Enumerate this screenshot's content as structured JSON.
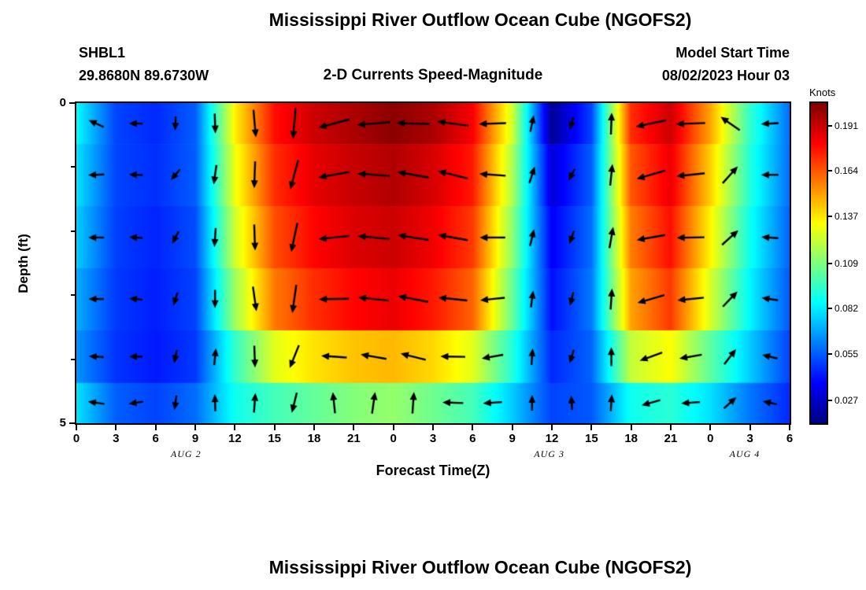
{
  "figure": {
    "title": "Mississippi River Outflow Ocean Cube (NGOFS2)",
    "station_id": "SHBL1",
    "station_coords": "29.8680N  89.6730W",
    "subtitle": "2-D Currents Speed-Magnitude",
    "model_start_label": "Model Start Time",
    "model_start_value": "08/02/2023 Hour 03",
    "bottom_figure_title": "Mississippi River Outflow Ocean Cube (NGOFS2)"
  },
  "chart_data": {
    "type": "heatmap",
    "title": "Mississippi River Outflow Ocean Cube (NGOFS2)",
    "subtitle": "2-D Currents Speed-Magnitude",
    "xlabel": "Forecast Time(Z)",
    "ylabel": "Depth (ft)",
    "x_range_hours": [
      0,
      54
    ],
    "x_hours": [
      0,
      3,
      6,
      9,
      12,
      15,
      18,
      21,
      24,
      27,
      30,
      33,
      36,
      39,
      42,
      45,
      48,
      51,
      54
    ],
    "x_tick_labels": [
      "0",
      "3",
      "6",
      "9",
      "12",
      "15",
      "18",
      "21",
      "0",
      "3",
      "6",
      "9",
      "12",
      "15",
      "18",
      "21",
      "0",
      "3",
      "6"
    ],
    "date_labels": [
      {
        "label": "AUG 2",
        "hour": 8.3
      },
      {
        "label": "AUG 3",
        "hour": 35.8
      },
      {
        "label": "AUG 4",
        "hour": 50.6
      }
    ],
    "y_range_ft": [
      0,
      5
    ],
    "y_tick_labels": [
      {
        "label": "0",
        "depth": 0
      },
      {
        "label": "5",
        "depth": 5
      }
    ],
    "y_minor_ticks": [
      1,
      2,
      3,
      4
    ],
    "depth_band_edges_ft": [
      0,
      0.64,
      1.61,
      2.58,
      3.55,
      4.37,
      5
    ],
    "speed_grid_knots": [
      [
        0.085,
        0.05,
        0.045,
        0.055,
        0.135,
        0.178,
        0.19,
        0.196,
        0.202,
        0.196,
        0.182,
        0.125,
        0.018,
        0.05,
        0.172,
        0.19,
        0.15,
        0.095,
        0.058
      ],
      [
        0.08,
        0.05,
        0.046,
        0.055,
        0.13,
        0.172,
        0.185,
        0.191,
        0.195,
        0.188,
        0.176,
        0.118,
        0.03,
        0.055,
        0.164,
        0.184,
        0.142,
        0.092,
        0.058
      ],
      [
        0.076,
        0.049,
        0.044,
        0.052,
        0.124,
        0.166,
        0.18,
        0.187,
        0.19,
        0.183,
        0.17,
        0.112,
        0.036,
        0.058,
        0.157,
        0.178,
        0.135,
        0.088,
        0.056
      ],
      [
        0.07,
        0.048,
        0.043,
        0.05,
        0.115,
        0.158,
        0.172,
        0.18,
        0.184,
        0.176,
        0.162,
        0.105,
        0.04,
        0.06,
        0.15,
        0.17,
        0.126,
        0.084,
        0.054
      ],
      [
        0.065,
        0.047,
        0.042,
        0.048,
        0.095,
        0.128,
        0.138,
        0.144,
        0.146,
        0.14,
        0.128,
        0.092,
        0.045,
        0.056,
        0.122,
        0.133,
        0.103,
        0.076,
        0.05
      ],
      [
        0.08,
        0.055,
        0.05,
        0.058,
        0.088,
        0.098,
        0.104,
        0.11,
        0.113,
        0.106,
        0.098,
        0.076,
        0.05,
        0.054,
        0.088,
        0.093,
        0.08,
        0.06,
        0.045
      ]
    ],
    "arrows": {
      "hours": [
        1.5,
        4.5,
        7.5,
        10.5,
        13.5,
        16.5,
        19.5,
        22.5,
        25.5,
        28.5,
        31.5,
        34.5,
        37.5,
        40.5,
        43.5,
        46.5,
        49.5,
        52.5
      ],
      "depths_ft": [
        0.32,
        1.12,
        2.1,
        3.06,
        3.96,
        4.68
      ],
      "angles_deg_ccw_from_east": [
        [
          155,
          180,
          268,
          272,
          275,
          265,
          195,
          185,
          178,
          172,
          182,
          78,
          255,
          88,
          192,
          182,
          145,
          183
        ],
        [
          182,
          178,
          230,
          262,
          268,
          255,
          190,
          176,
          170,
          166,
          176,
          72,
          242,
          84,
          196,
          186,
          48,
          180
        ],
        [
          180,
          176,
          242,
          266,
          272,
          258,
          186,
          175,
          171,
          170,
          180,
          76,
          250,
          80,
          190,
          181,
          42,
          176
        ],
        [
          179,
          174,
          252,
          270,
          278,
          262,
          181,
          174,
          169,
          174,
          186,
          82,
          256,
          86,
          196,
          186,
          46,
          171
        ],
        [
          176,
          180,
          258,
          84,
          272,
          248,
          176,
          170,
          166,
          179,
          190,
          86,
          252,
          90,
          200,
          190,
          52,
          166
        ],
        [
          172,
          188,
          262,
          92,
          86,
          256,
          96,
          82,
          86,
          178,
          184,
          90,
          94,
          86,
          196,
          184,
          42,
          168
        ]
      ]
    },
    "colorbar": {
      "units": "Knots",
      "tick_labels": [
        "0.191",
        "0.164",
        "0.137",
        "0.109",
        "0.082",
        "0.055",
        "0.027"
      ],
      "vmin": 0.0135,
      "vmax": 0.2045,
      "colormap": "jet"
    }
  }
}
